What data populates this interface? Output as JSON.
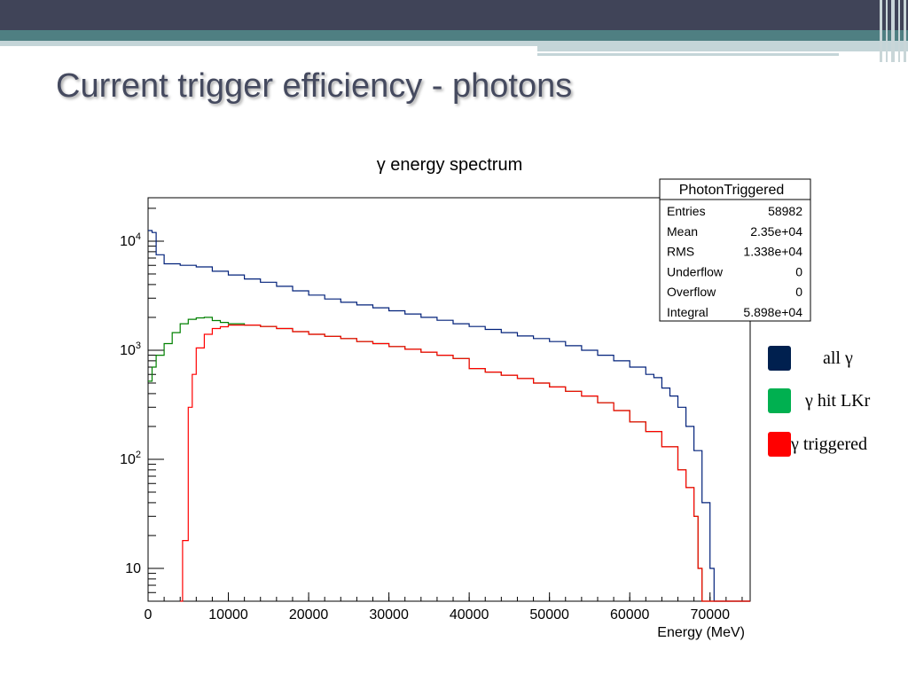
{
  "slide": {
    "title": "Current trigger efficiency - photons"
  },
  "theme": {
    "header_color": "#404458",
    "accent_color": "#4f7f82",
    "light_accent": "#c4d5d8"
  },
  "stats_box": {
    "name": "PhotonTriggered",
    "rows": [
      {
        "label": "Entries",
        "value": "58982"
      },
      {
        "label": "Mean",
        "value": "2.35e+04"
      },
      {
        "label": "RMS",
        "value": "1.338e+04"
      },
      {
        "label": "Underflow",
        "value": "0"
      },
      {
        "label": "Overflow",
        "value": "0"
      },
      {
        "label": "Integral",
        "value": "5.898e+04"
      }
    ]
  },
  "legend": [
    {
      "label": "all γ",
      "color": "#00204f"
    },
    {
      "label": "γ hit LKr",
      "color": "#00b050"
    },
    {
      "label": "γ triggered",
      "color": "#ff0000"
    }
  ],
  "chart_data": {
    "type": "line",
    "title": "γ energy spectrum",
    "xlabel": "Energy (MeV)",
    "ylabel": "",
    "xlim": [
      0,
      75000
    ],
    "ylim": [
      5,
      25000
    ],
    "y_scale": "log",
    "x_ticks": [
      0,
      10000,
      20000,
      30000,
      40000,
      50000,
      60000,
      70000
    ],
    "y_ticks": [
      {
        "value": 10,
        "label": "10"
      },
      {
        "value": 100,
        "label": "10^2"
      },
      {
        "value": 1000,
        "label": "10^3"
      },
      {
        "value": 10000,
        "label": "10^4"
      }
    ],
    "series": [
      {
        "color": "#00207a",
        "points": [
          [
            0,
            12500
          ],
          [
            500,
            12000
          ],
          [
            1000,
            7500
          ],
          [
            2000,
            6200
          ],
          [
            4000,
            6000
          ],
          [
            6000,
            5800
          ],
          [
            8000,
            5300
          ],
          [
            10000,
            4900
          ],
          [
            12000,
            4500
          ],
          [
            14000,
            4200
          ],
          [
            16000,
            3850
          ],
          [
            18000,
            3500
          ],
          [
            20000,
            3200
          ],
          [
            22000,
            2950
          ],
          [
            24000,
            2750
          ],
          [
            26000,
            2600
          ],
          [
            28000,
            2450
          ],
          [
            30000,
            2300
          ],
          [
            32000,
            2150
          ],
          [
            34000,
            2000
          ],
          [
            36000,
            1880
          ],
          [
            38000,
            1750
          ],
          [
            40000,
            1650
          ],
          [
            42000,
            1550
          ],
          [
            44000,
            1450
          ],
          [
            46000,
            1350
          ],
          [
            48000,
            1280
          ],
          [
            50000,
            1200
          ],
          [
            52000,
            1100
          ],
          [
            54000,
            1000
          ],
          [
            56000,
            900
          ],
          [
            58000,
            800
          ],
          [
            60000,
            700
          ],
          [
            62000,
            600
          ],
          [
            63000,
            560
          ],
          [
            64000,
            450
          ],
          [
            65000,
            380
          ],
          [
            66000,
            300
          ],
          [
            67000,
            200
          ],
          [
            68000,
            120
          ],
          [
            69000,
            40
          ],
          [
            70000,
            10
          ],
          [
            70500,
            5
          ]
        ]
      },
      {
        "color": "#008000",
        "points": [
          [
            0,
            520
          ],
          [
            500,
            700
          ],
          [
            1000,
            900
          ],
          [
            2000,
            1150
          ],
          [
            3000,
            1450
          ],
          [
            4000,
            1750
          ],
          [
            5000,
            1920
          ],
          [
            6000,
            1980
          ],
          [
            7000,
            2000
          ],
          [
            8000,
            1870
          ],
          [
            9000,
            1800
          ],
          [
            10000,
            1750
          ],
          [
            12000,
            1700
          ],
          [
            14000,
            1650
          ],
          [
            16000,
            1580
          ],
          [
            18000,
            1480
          ],
          [
            20000,
            1400
          ],
          [
            22000,
            1340
          ],
          [
            24000,
            1280
          ],
          [
            26000,
            1200
          ],
          [
            28000,
            1150
          ],
          [
            30000,
            1080
          ],
          [
            32000,
            1020
          ],
          [
            34000,
            960
          ],
          [
            36000,
            900
          ],
          [
            38000,
            840
          ],
          [
            40000,
            680
          ],
          [
            42000,
            630
          ],
          [
            44000,
            590
          ],
          [
            46000,
            550
          ],
          [
            48000,
            500
          ],
          [
            50000,
            460
          ],
          [
            52000,
            420
          ],
          [
            54000,
            380
          ],
          [
            56000,
            330
          ],
          [
            58000,
            280
          ],
          [
            60000,
            220
          ],
          [
            62000,
            180
          ],
          [
            64000,
            130
          ],
          [
            66000,
            80
          ],
          [
            67000,
            55
          ],
          [
            68000,
            30
          ],
          [
            68500,
            10
          ],
          [
            69000,
            5
          ]
        ]
      },
      {
        "color": "#ff0000",
        "points": [
          [
            4000,
            5
          ],
          [
            4300,
            18
          ],
          [
            5000,
            300
          ],
          [
            5500,
            600
          ],
          [
            6000,
            1050
          ],
          [
            7000,
            1400
          ],
          [
            8000,
            1580
          ],
          [
            9000,
            1640
          ],
          [
            10000,
            1700
          ],
          [
            12000,
            1700
          ],
          [
            14000,
            1650
          ],
          [
            16000,
            1580
          ],
          [
            18000,
            1480
          ],
          [
            20000,
            1400
          ],
          [
            22000,
            1340
          ],
          [
            24000,
            1280
          ],
          [
            26000,
            1200
          ],
          [
            28000,
            1150
          ],
          [
            30000,
            1080
          ],
          [
            32000,
            1020
          ],
          [
            34000,
            960
          ],
          [
            36000,
            900
          ],
          [
            38000,
            840
          ],
          [
            40000,
            680
          ],
          [
            42000,
            630
          ],
          [
            44000,
            590
          ],
          [
            46000,
            550
          ],
          [
            48000,
            500
          ],
          [
            50000,
            460
          ],
          [
            52000,
            420
          ],
          [
            54000,
            380
          ],
          [
            56000,
            330
          ],
          [
            58000,
            280
          ],
          [
            60000,
            220
          ],
          [
            62000,
            180
          ],
          [
            64000,
            130
          ],
          [
            66000,
            80
          ],
          [
            67000,
            55
          ],
          [
            68000,
            30
          ],
          [
            68500,
            10
          ],
          [
            69000,
            5
          ]
        ]
      }
    ]
  }
}
